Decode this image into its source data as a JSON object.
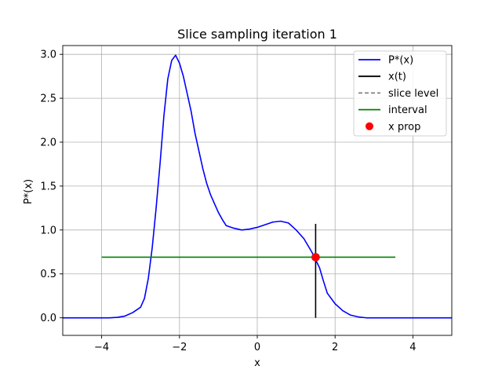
{
  "chart_data": {
    "type": "line",
    "title": "Slice sampling iteration 1",
    "xlabel": "x",
    "ylabel": "P*(x)",
    "xlim": [
      -5,
      5
    ],
    "ylim": [
      -0.2,
      3.1
    ],
    "xticks": [
      -4,
      -2,
      0,
      2,
      4
    ],
    "xtick_labels": [
      "−4",
      "−2",
      "0",
      "2",
      "4"
    ],
    "yticks": [
      0.0,
      0.5,
      1.0,
      1.5,
      2.0,
      2.5,
      3.0
    ],
    "ytick_labels": [
      "0.0",
      "0.5",
      "1.0",
      "1.5",
      "2.0",
      "2.5",
      "3.0"
    ],
    "grid": true,
    "legend_position": "top-right",
    "series": [
      {
        "name": "P*(x)",
        "kind": "curve",
        "color": "#0000ff",
        "x": [
          -5.0,
          -4.8,
          -4.6,
          -4.4,
          -4.2,
          -4.0,
          -3.8,
          -3.6,
          -3.4,
          -3.2,
          -3.0,
          -2.9,
          -2.8,
          -2.7,
          -2.6,
          -2.5,
          -2.4,
          -2.3,
          -2.2,
          -2.1,
          -2.0,
          -1.9,
          -1.8,
          -1.75,
          -1.7,
          -1.6,
          -1.5,
          -1.4,
          -1.3,
          -1.2,
          -1.1,
          -1.0,
          -0.9,
          -0.8,
          -0.6,
          -0.4,
          -0.2,
          0.0,
          0.2,
          0.4,
          0.6,
          0.8,
          1.0,
          1.2,
          1.4,
          1.6,
          1.7,
          1.8,
          2.0,
          2.2,
          2.4,
          2.6,
          2.8,
          3.0,
          3.2,
          3.4,
          3.6,
          4.0,
          4.5,
          5.0
        ],
        "y": [
          0.0,
          0.0,
          0.0,
          0.0,
          0.0,
          0.0,
          0.0,
          0.005,
          0.02,
          0.06,
          0.12,
          0.22,
          0.45,
          0.8,
          1.25,
          1.75,
          2.3,
          2.72,
          2.93,
          2.99,
          2.9,
          2.75,
          2.55,
          2.45,
          2.35,
          2.1,
          1.9,
          1.7,
          1.53,
          1.4,
          1.3,
          1.2,
          1.12,
          1.05,
          1.02,
          1.0,
          1.01,
          1.03,
          1.06,
          1.09,
          1.1,
          1.08,
          1.0,
          0.9,
          0.75,
          0.57,
          0.42,
          0.28,
          0.16,
          0.08,
          0.03,
          0.01,
          0.0,
          0.0,
          0.0,
          0.0,
          0.0,
          0.0,
          0.0,
          0.0
        ]
      },
      {
        "name": "x(t)",
        "kind": "vline",
        "color": "#000000",
        "x": [
          1.5,
          1.5
        ],
        "y": [
          0.0,
          1.07
        ]
      },
      {
        "name": "slice level",
        "kind": "dashed",
        "color": "#808080",
        "x": [],
        "y": []
      },
      {
        "name": "interval",
        "kind": "hline",
        "color": "#008000",
        "x": [
          -4.0,
          3.55
        ],
        "y": [
          0.69,
          0.69
        ]
      },
      {
        "name": "x prop",
        "kind": "point",
        "color": "#ff0000",
        "x": [
          1.5
        ],
        "y": [
          0.69
        ]
      }
    ]
  }
}
